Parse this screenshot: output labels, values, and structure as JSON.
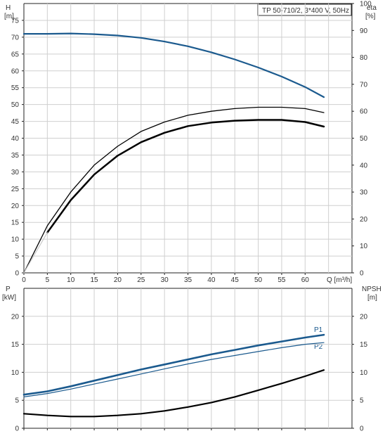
{
  "chart_data": [
    {
      "type": "line",
      "title": "TP 50-710/2, 3*400 V, 50Hz",
      "xlabel": "Q [m³/h]",
      "xlim": [
        0,
        70
      ],
      "x_ticks": [
        0,
        5,
        10,
        15,
        20,
        25,
        30,
        35,
        40,
        45,
        50,
        55,
        60
      ],
      "ylabel_left_name": "H",
      "ylabel_left_unit": "[m]",
      "ylim_left": [
        0,
        80
      ],
      "y_ticks_left": [
        0,
        5,
        10,
        15,
        20,
        25,
        30,
        35,
        40,
        45,
        50,
        55,
        60,
        65,
        70,
        75
      ],
      "ylabel_right_name": "eta",
      "ylabel_right_unit": "[%]",
      "ylim_right": [
        0,
        100
      ],
      "y_ticks_right": [
        0,
        10,
        20,
        30,
        40,
        50,
        60,
        70,
        80,
        90,
        100
      ],
      "grid": true,
      "series": [
        {
          "axis": "left",
          "color": "#1b5a8e",
          "width": 2.2,
          "x": [
            0,
            5,
            10,
            15,
            20,
            25,
            30,
            35,
            40,
            45,
            50,
            55,
            60,
            64
          ],
          "values": [
            71,
            71,
            71.1,
            70.9,
            70.5,
            69.8,
            68.7,
            67.3,
            65.5,
            63.4,
            61,
            58.3,
            55.2,
            52.2
          ]
        },
        {
          "axis": "right",
          "color": "#000000",
          "width": 1.3,
          "x": [
            0,
            5,
            10,
            15,
            20,
            25,
            30,
            35,
            40,
            45,
            50,
            55,
            60,
            64
          ],
          "values": [
            0,
            17.5,
            30,
            40,
            47,
            52.5,
            56,
            58.5,
            60,
            61,
            61.5,
            61.5,
            61,
            59.5
          ]
        },
        {
          "axis": "right",
          "color": "#000000",
          "width": 2.5,
          "x": [
            5,
            10,
            15,
            20,
            25,
            30,
            35,
            40,
            45,
            50,
            55,
            60,
            64
          ],
          "values": [
            15,
            27,
            36.5,
            43.5,
            48.5,
            52,
            54.5,
            55.8,
            56.5,
            56.8,
            56.8,
            56,
            54.3
          ]
        },
        {
          "axis": "right",
          "color": "#c9c9c9",
          "width": 1.2,
          "x": [
            0,
            5
          ],
          "values": [
            0,
            15
          ]
        }
      ]
    },
    {
      "type": "line",
      "xlim": [
        0,
        70
      ],
      "ylabel_left_name": "P",
      "ylabel_left_unit": "[kW]",
      "ylim_left": [
        0,
        25
      ],
      "y_ticks_left": [
        0,
        5,
        10,
        15,
        20
      ],
      "ylabel_right_name": "NPSH",
      "ylabel_right_unit": "[m]",
      "ylim_right": [
        0,
        25
      ],
      "y_ticks_right": [
        0,
        5,
        10,
        15,
        20
      ],
      "grid": true,
      "series": [
        {
          "name": "P1",
          "axis": "left",
          "color": "#1b5a8e",
          "width": 2.6,
          "x": [
            0,
            5,
            10,
            15,
            20,
            25,
            30,
            35,
            40,
            45,
            50,
            55,
            60,
            64
          ],
          "values": [
            6,
            6.6,
            7.5,
            8.5,
            9.5,
            10.5,
            11.4,
            12.3,
            13.2,
            14,
            14.8,
            15.5,
            16.2,
            16.7
          ]
        },
        {
          "name": "P2",
          "axis": "left",
          "color": "#1b5a8e",
          "width": 1.2,
          "x": [
            0,
            5,
            10,
            15,
            20,
            25,
            30,
            35,
            40,
            45,
            50,
            55,
            60,
            64
          ],
          "values": [
            5.6,
            6.2,
            7,
            7.9,
            8.8,
            9.7,
            10.6,
            11.5,
            12.3,
            13,
            13.7,
            14.4,
            15,
            15.3
          ]
        },
        {
          "name": "NPSH",
          "axis": "right",
          "color": "#000000",
          "width": 2.2,
          "x": [
            0,
            5,
            10,
            15,
            20,
            25,
            30,
            35,
            40,
            45,
            50,
            55,
            60,
            64
          ],
          "values": [
            2.6,
            2.3,
            2.1,
            2.1,
            2.3,
            2.6,
            3.1,
            3.8,
            4.6,
            5.6,
            6.8,
            8,
            9.3,
            10.4
          ]
        }
      ]
    }
  ]
}
